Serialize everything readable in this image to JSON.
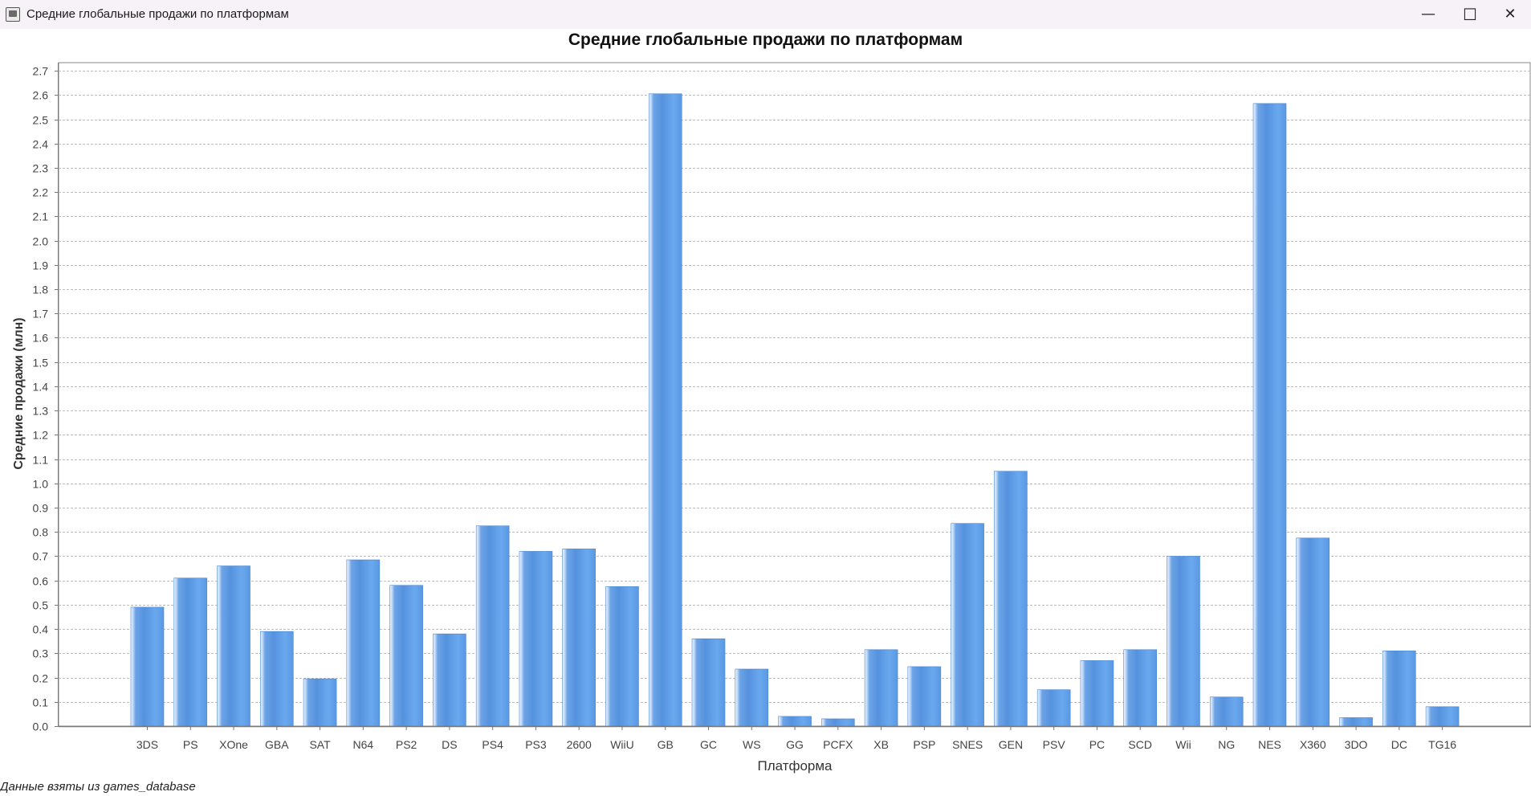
{
  "window": {
    "title": "Средние глобальные продажи по платформам",
    "minimize": "—",
    "maximize": "☐",
    "close": "✕"
  },
  "chart_data": {
    "type": "bar",
    "title": "Средние глобальные продажи по платформам",
    "xlabel": "Платформа",
    "ylabel": "Средние продажи (млн)",
    "ylim": [
      0,
      2.75
    ],
    "yticks": [
      "0.0",
      "0.1",
      "0.2",
      "0.3",
      "0.4",
      "0.5",
      "0.6",
      "0.7",
      "0.8",
      "0.9",
      "1.0",
      "1.1",
      "1.2",
      "1.3",
      "1.4",
      "1.5",
      "1.6",
      "1.7",
      "1.8",
      "1.9",
      "2.0",
      "2.1",
      "2.2",
      "2.3",
      "2.4",
      "2.5",
      "2.6",
      "2.7"
    ],
    "grid": true,
    "bar_color": "#5b9be6",
    "categories": [
      "3DS",
      "PS",
      "XOne",
      "GBA",
      "SAT",
      "N64",
      "PS2",
      "DS",
      "PS4",
      "PS3",
      "2600",
      "WiiU",
      "GB",
      "GC",
      "WS",
      "GG",
      "PCFX",
      "XB",
      "PSP",
      "SNES",
      "GEN",
      "PSV",
      "PC",
      "SCD",
      "Wii",
      "NG",
      "NES",
      "X360",
      "3DO",
      "DC",
      "TG16"
    ],
    "values": [
      0.49,
      0.61,
      0.66,
      0.39,
      0.195,
      0.685,
      0.58,
      0.38,
      0.825,
      0.72,
      0.73,
      0.575,
      2.605,
      0.36,
      0.235,
      0.04,
      0.03,
      0.315,
      0.245,
      0.835,
      1.05,
      0.15,
      0.27,
      0.315,
      0.7,
      0.12,
      2.565,
      0.775,
      0.035,
      0.31,
      0.08
    ]
  },
  "footer": {
    "note": "Данные взяты из games_database"
  }
}
